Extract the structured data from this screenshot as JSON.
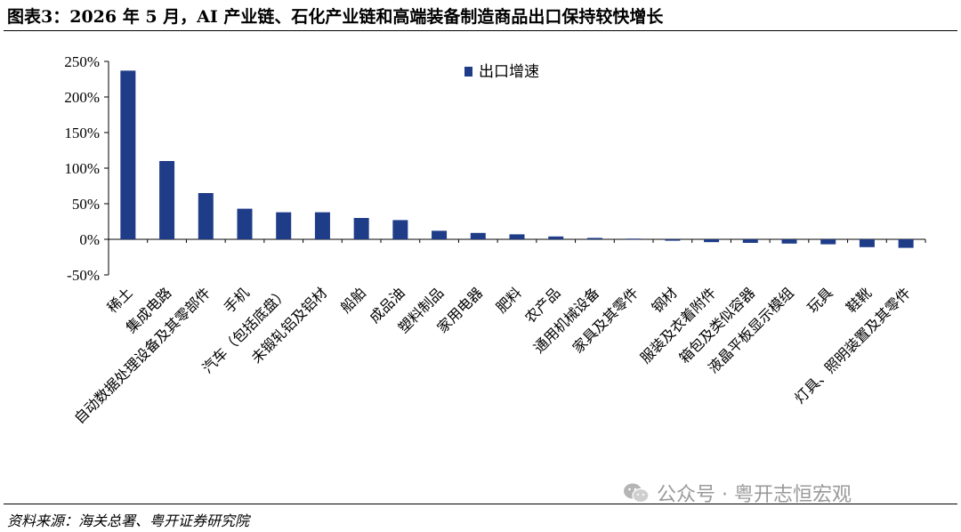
{
  "title": "图表3：2026 年 5 月，AI 产业链、石化产业链和高端装备制造商品出口保持较快增长",
  "source": "资料来源：海关总署、粤开证券研究院",
  "watermark": "公众号 · 粤开志恒宏观",
  "colors": {
    "bar": "#1f3c88",
    "axis": "#000000"
  },
  "chart_data": {
    "type": "bar",
    "title": "",
    "xlabel": "",
    "ylabel": "",
    "ylim": [
      -50,
      250
    ],
    "yticks": [
      -50,
      0,
      50,
      100,
      150,
      200,
      250
    ],
    "ytick_labels": [
      "-50%",
      "0%",
      "50%",
      "100%",
      "150%",
      "200%",
      "250%"
    ],
    "legend_position": "top",
    "grid": false,
    "categories": [
      "稀土",
      "集成电路",
      "自动数据处理设备及其零部件",
      "手机",
      "汽车（包括底盘）",
      "未锻轧铝及铝材",
      "船舶",
      "成品油",
      "塑料制品",
      "家用电器",
      "肥料",
      "农产品",
      "通用机械设备",
      "家具及其零件",
      "钢材",
      "服装及衣着附件",
      "箱包及类似容器",
      "液晶平板显示模组",
      "玩具",
      "鞋靴",
      "灯具、照明装置及其零件"
    ],
    "series": [
      {
        "name": "出口增速",
        "values": [
          237,
          110,
          65,
          43,
          38,
          38,
          30,
          27,
          12,
          9,
          7,
          4,
          2,
          1,
          -2,
          -4,
          -5,
          -6,
          -7,
          -11,
          -12
        ]
      }
    ]
  }
}
